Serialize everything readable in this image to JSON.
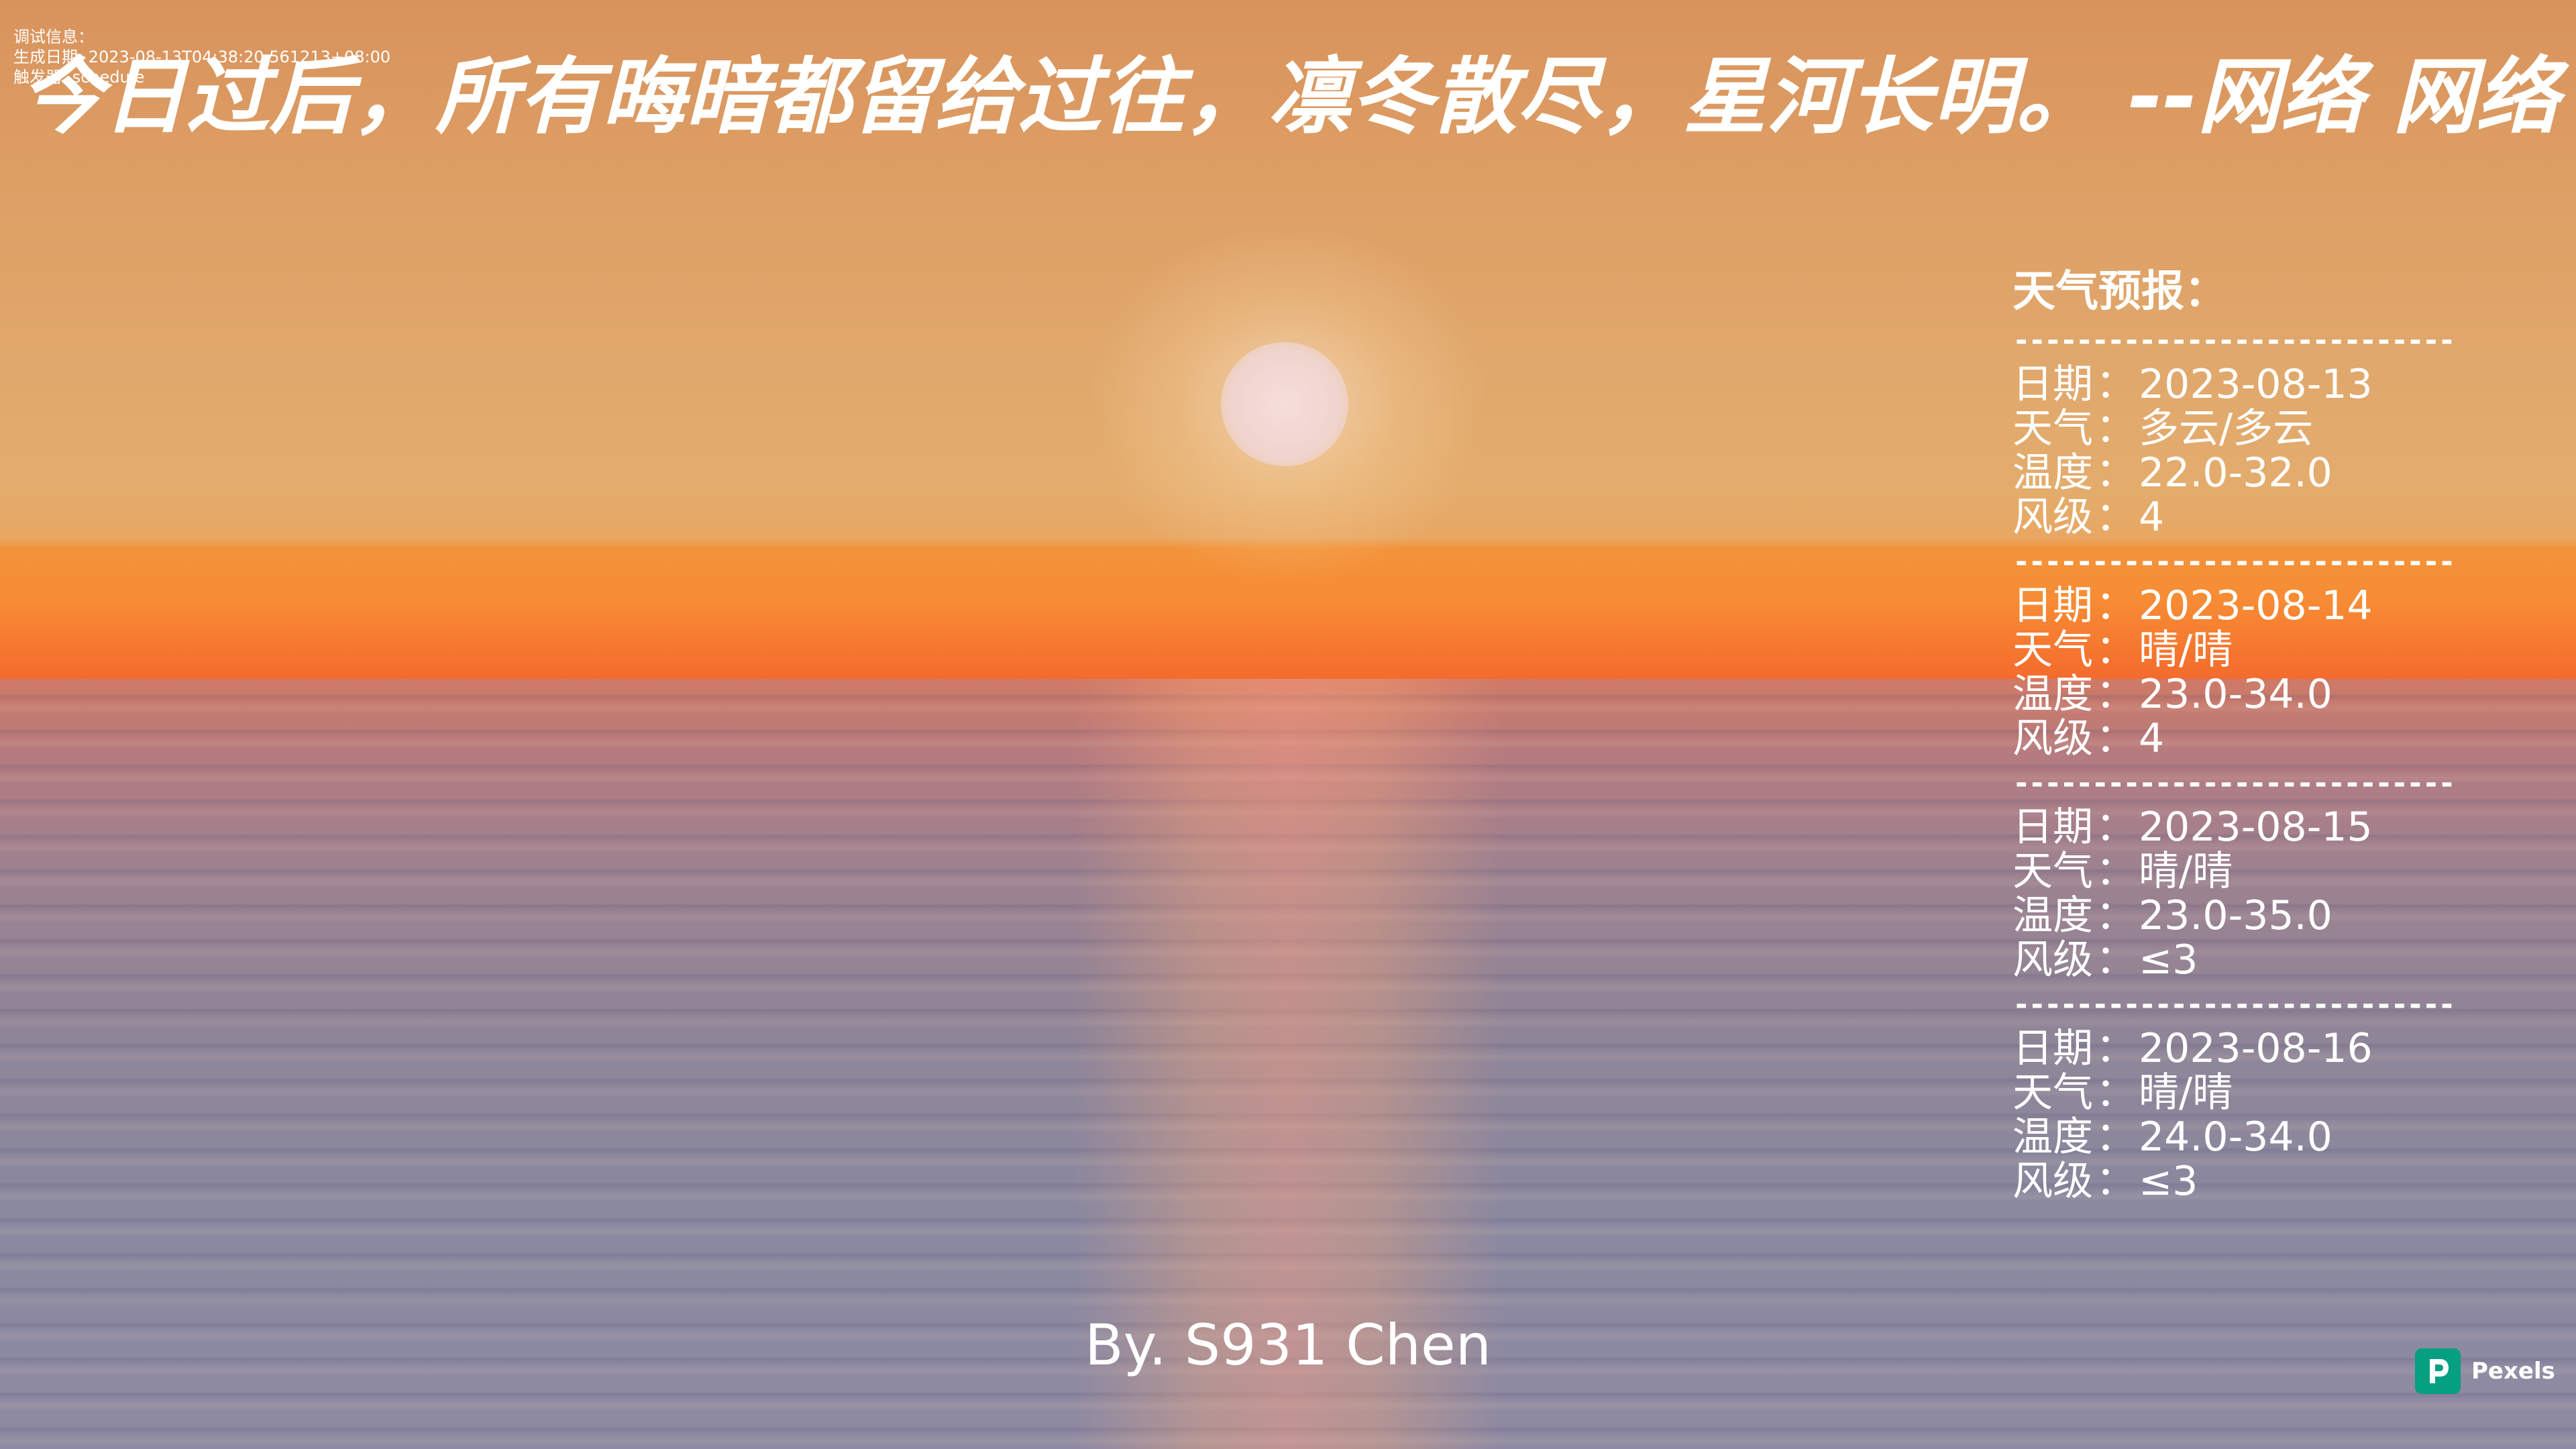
{
  "debug": {
    "line1": "调试信息：",
    "line2": "生成日期: 2023-08-13T04:38:20.561213+08:00",
    "line3": "触发器: schedule"
  },
  "quote": {
    "text": "今日过后，所有晦暗都留给过往，凛冬散尽，星河长明。  --网络 网络"
  },
  "weather": {
    "heading": "天气预报：",
    "divider": "----------------------------",
    "labels": {
      "date": "日期",
      "weather": "天气",
      "temp": "温度",
      "wind": "风级",
      "sep": "："
    },
    "days": [
      {
        "date": "2023-08-13",
        "weather": "多云/多云",
        "temp": "22.0-32.0",
        "wind": "4"
      },
      {
        "date": "2023-08-14",
        "weather": "晴/晴",
        "temp": "23.0-34.0",
        "wind": "4"
      },
      {
        "date": "2023-08-15",
        "weather": "晴/晴",
        "temp": "23.0-35.0",
        "wind": "≤3"
      },
      {
        "date": "2023-08-16",
        "weather": "晴/晴",
        "temp": "24.0-34.0",
        "wind": "≤3"
      }
    ]
  },
  "byline": {
    "text": "By. S931 Chen"
  },
  "watermark": {
    "text": "Pexels",
    "icon": "pexels-logo-icon",
    "color": "#05a081"
  },
  "colors": {
    "text": "#ffffff",
    "sky": "#dea066",
    "horizon": "#f78c34",
    "sea": "#8f8597"
  }
}
